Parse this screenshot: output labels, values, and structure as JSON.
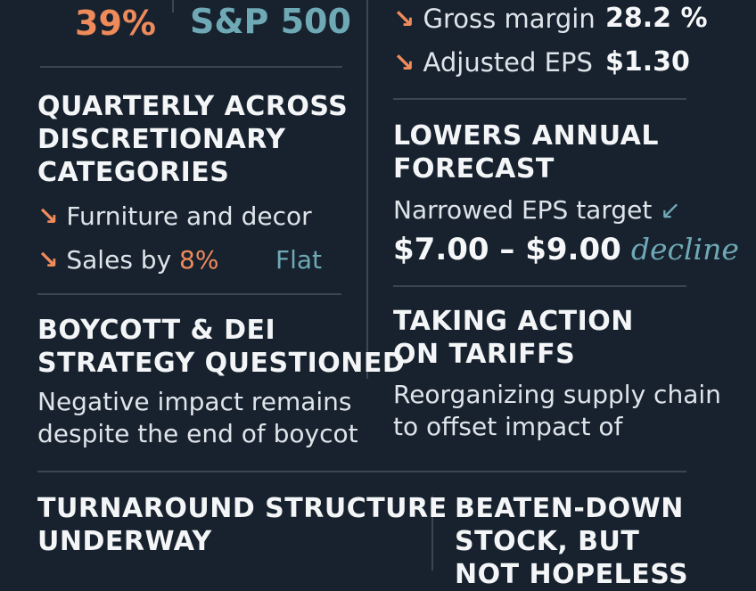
{
  "top_left": {
    "percent": "39%",
    "index": "S&P 500"
  },
  "top_right": {
    "rows": [
      {
        "arrow": "↘",
        "label": "Gross margin",
        "value": "28.2 %"
      },
      {
        "arrow": "↘",
        "label": "Adjusted EPS",
        "value": "$1.30"
      }
    ]
  },
  "quarterly": {
    "heading_line1": "QUARTERLY ACROSS",
    "heading_line2": "DISCRETIONARY",
    "heading_line3": "CATEGORIES",
    "row1_arrow": "↘",
    "row1_text": "Furniture and decor",
    "row2_arrow": "↘",
    "row2_text": "Sales by ",
    "row2_value": "8%",
    "row2_side": "Flat"
  },
  "forecast": {
    "heading_line1": "LOWERS ANNUAL",
    "heading_line2": "FORECAST",
    "subtext": "Narrowed EPS target",
    "subtext_arrow": "↙",
    "range": "$7.00 – $9.00",
    "range_note": "decline"
  },
  "boycott": {
    "heading_line1": "BOYCOTT & DEI",
    "heading_line2": "STRATEGY QUESTIONED",
    "body_line1": "Negative impact remains",
    "body_line2": "despite the end of boycot"
  },
  "tariffs": {
    "heading_line1": "TAKING ACTION",
    "heading_line2": "ON TARIFFS",
    "body_line1": "Reorganizing supply chain",
    "body_line2": "to offset impact of"
  },
  "turnaround": {
    "heading_line1": "TURNAROUND STRUCTURE",
    "heading_line2": "UNDERWAY"
  },
  "stock": {
    "heading_line1": "BEATEN-DOWN",
    "heading_line2": "STOCK, BUT",
    "heading_line3": "NOT HOPELESS"
  },
  "colors": {
    "background": "#17222e",
    "accent_orange": "#ef8a5b",
    "accent_teal": "#6fa9b6",
    "divider": "#3a4654"
  }
}
